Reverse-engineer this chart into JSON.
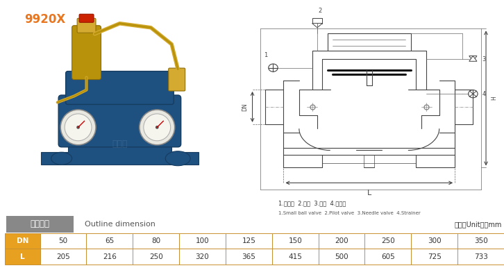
{
  "title_model": "9920X",
  "title_model_color": "#E87722",
  "section_label_cn": "外型尺寸",
  "section_label_en": "Outline dimension",
  "unit_text": "单位（Unit）：mm",
  "legend_cn": "1.小球阀  2.导阀  3.针阀  4.过滤器",
  "legend_en": "1.Small ball valve  2.Pilot valve  3.Needle valve  4.Strainer",
  "table_headers": [
    "DN",
    "50",
    "65",
    "80",
    "100",
    "125",
    "150",
    "200",
    "250",
    "300",
    "350"
  ],
  "table_row_label": "L",
  "table_row_values": [
    "205",
    "216",
    "250",
    "320",
    "365",
    "415",
    "500",
    "605",
    "725",
    "733"
  ],
  "header_bg_color": "#E8A020",
  "row_label_bg_color": "#E8A020",
  "table_border_color": "#C89030",
  "section_label_bg": "#888888",
  "section_label_text_color": "#FFFFFF",
  "bg_color": "#FFFFFF",
  "photo_border_color": "#BBBBBB",
  "photo_bg": "#FFFFFF",
  "valve_blue": "#1E5080",
  "valve_blue_dark": "#163C60",
  "valve_brass": "#B8920A",
  "valve_brass_light": "#D4AA30",
  "lc": "#444444",
  "lc_thin": "#666666"
}
